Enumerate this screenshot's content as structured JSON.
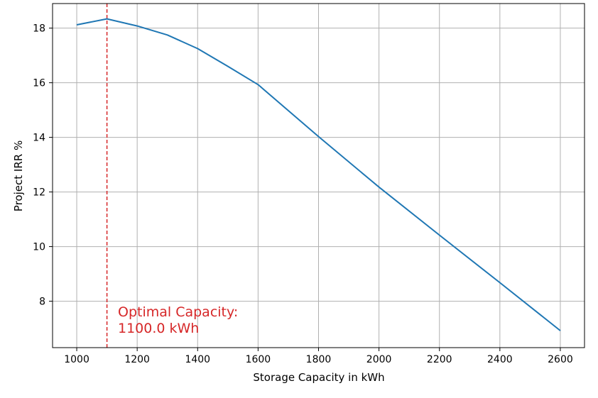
{
  "chart_data": {
    "type": "line",
    "xlabel": "Storage Capacity in kWh",
    "ylabel": "Project IRR %",
    "xlim": [
      920,
      2680
    ],
    "ylim": [
      6.3,
      18.9
    ],
    "xticks": [
      1000,
      1200,
      1400,
      1600,
      1800,
      2000,
      2200,
      2400,
      2600
    ],
    "yticks": [
      8,
      10,
      12,
      14,
      16,
      18
    ],
    "grid": true,
    "series": [
      {
        "color": "#1f77b4",
        "x": [
          1000,
          1100,
          1200,
          1300,
          1400,
          1500,
          1600,
          1800,
          2000,
          2200,
          2400,
          2600
        ],
        "y": [
          18.12,
          18.34,
          18.08,
          17.75,
          17.25,
          16.6,
          15.93,
          14.03,
          12.18,
          10.42,
          8.68,
          6.92
        ]
      }
    ],
    "reference_line": {
      "x": 1100,
      "color": "#d62728",
      "style": "dashed"
    },
    "annotation": {
      "lines": [
        "Optimal Capacity:",
        "1100.0 kWh"
      ],
      "color": "#d62728"
    }
  }
}
